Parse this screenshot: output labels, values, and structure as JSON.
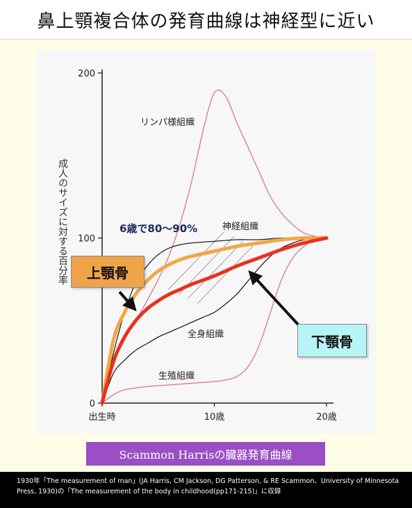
{
  "title": "鼻上顎複合体の発育曲線は神経型に近い",
  "caption": "Scammon Harrisの臓器発育曲線",
  "footer": {
    "line1": "1930年「The measurement of man」(JA Harris, CM Jackson, DG Patterson, & RE Scammon、University of Minnesota",
    "line2": "Press, 1930)の「The measurement of the body in childhood(pp171-215)」に収録"
  },
  "callouts": {
    "upper": "上顎骨",
    "lower": "下顎骨",
    "percent": "6歳で80～90%"
  },
  "colors": {
    "upper_jaw": "#f0a845",
    "lower_jaw": "#e8321e",
    "lymph": "#d98090",
    "general": "#222222",
    "caption_bg": "#9a4fc4",
    "upper_box": "#f0a44a",
    "lower_box": "#b6f4f6"
  },
  "chart_data": {
    "type": "line",
    "ylabel": "成人のサイズに対する百分率",
    "xlabel": "",
    "ylim": [
      0,
      200
    ],
    "xlim": [
      0,
      20
    ],
    "yticks": [
      "0",
      "100",
      "200"
    ],
    "xticks": [
      {
        "value": 0,
        "label": "出生時"
      },
      {
        "value": 10,
        "label": "10歳"
      },
      {
        "value": 20,
        "label": "20歳"
      }
    ],
    "series": [
      {
        "name": "リンパ様組織",
        "key": "lymph",
        "x": [
          0,
          1,
          2,
          3,
          4,
          5,
          6,
          7,
          8,
          9,
          10,
          11,
          12,
          13,
          14,
          15,
          16,
          17,
          18,
          19,
          20
        ],
        "y": [
          0,
          25,
          40,
          50,
          62,
          75,
          90,
          110,
          135,
          165,
          188,
          186,
          170,
          155,
          140,
          125,
          115,
          108,
          103,
          101,
          100
        ]
      },
      {
        "name": "神経組織",
        "key": "neural",
        "x": [
          0,
          1,
          2,
          3,
          4,
          5,
          6,
          7,
          8,
          10,
          12,
          14,
          16,
          18,
          20
        ],
        "y": [
          0,
          30,
          55,
          73,
          83,
          90,
          94,
          96,
          97,
          98,
          99,
          99,
          100,
          100,
          100
        ]
      },
      {
        "name": "全身組織",
        "key": "general",
        "x": [
          0,
          1,
          2,
          3,
          4,
          5,
          6,
          7,
          8,
          9,
          10,
          11,
          12,
          13,
          14,
          15,
          16,
          17,
          18,
          19,
          20
        ],
        "y": [
          0,
          18,
          26,
          32,
          36,
          40,
          43,
          46,
          49,
          52,
          55,
          60,
          66,
          74,
          82,
          89,
          94,
          97,
          99,
          100,
          100
        ]
      },
      {
        "name": "生殖組織",
        "key": "genital",
        "x": [
          0,
          1,
          2,
          4,
          6,
          8,
          10,
          11,
          12,
          13,
          14,
          15,
          16,
          17,
          18,
          19,
          20
        ],
        "y": [
          0,
          5,
          8,
          10,
          11,
          12,
          13,
          14,
          16,
          22,
          35,
          55,
          75,
          88,
          95,
          99,
          100
        ]
      },
      {
        "name": "上顎骨",
        "key": "upper_jaw",
        "x": [
          0,
          1,
          2,
          3,
          4,
          5,
          6,
          7,
          8,
          10,
          12,
          14,
          16,
          18,
          20
        ],
        "y": [
          0,
          38,
          55,
          66,
          74,
          80,
          84,
          87,
          89,
          92,
          95,
          97,
          99,
          100,
          100
        ]
      },
      {
        "name": "下顎骨",
        "key": "lower_jaw",
        "x": [
          0,
          1,
          2,
          3,
          4,
          5,
          6,
          7,
          8,
          10,
          12,
          14,
          16,
          18,
          20
        ],
        "y": [
          0,
          25,
          40,
          50,
          57,
          62,
          66,
          69,
          72,
          77,
          83,
          88,
          93,
          97,
          100
        ]
      }
    ],
    "curve_labels": [
      {
        "text": "リンパ様組織",
        "series": "lymph"
      },
      {
        "text": "神経組織",
        "series": "neural"
      },
      {
        "text": "全身組織",
        "series": "general"
      },
      {
        "text": "生殖組織",
        "series": "genital"
      }
    ]
  }
}
